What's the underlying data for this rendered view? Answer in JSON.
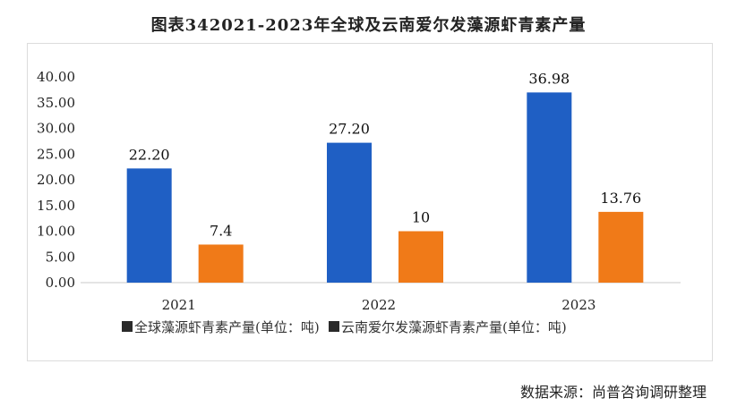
{
  "chart_data": {
    "type": "bar",
    "title": "图表342021-2023年全球及云南爱尔发藻源虾青素产量",
    "categories": [
      "2021",
      "2022",
      "2023"
    ],
    "series": [
      {
        "name": "全球藻源虾青素产量(单位：吨)",
        "values": [
          22.2,
          27.2,
          36.98
        ],
        "labels": [
          "22.20",
          "27.20",
          "36.98"
        ],
        "color": "#1f5fc4"
      },
      {
        "name": "云南爱尔发藻源虾青素产量(单位：吨)",
        "values": [
          7.4,
          10,
          13.76
        ],
        "labels": [
          "7.4",
          "10",
          "13.76"
        ],
        "color": "#f07a18"
      }
    ],
    "y_ticks": [
      "0.00",
      "5.00",
      "10.00",
      "15.00",
      "20.00",
      "25.00",
      "30.00",
      "35.00",
      "40.00"
    ],
    "ylim": [
      0,
      40
    ],
    "xlabel": "",
    "ylabel": "",
    "legend_position": "bottom",
    "source": "数据来源：尚普咨询调研整理"
  }
}
